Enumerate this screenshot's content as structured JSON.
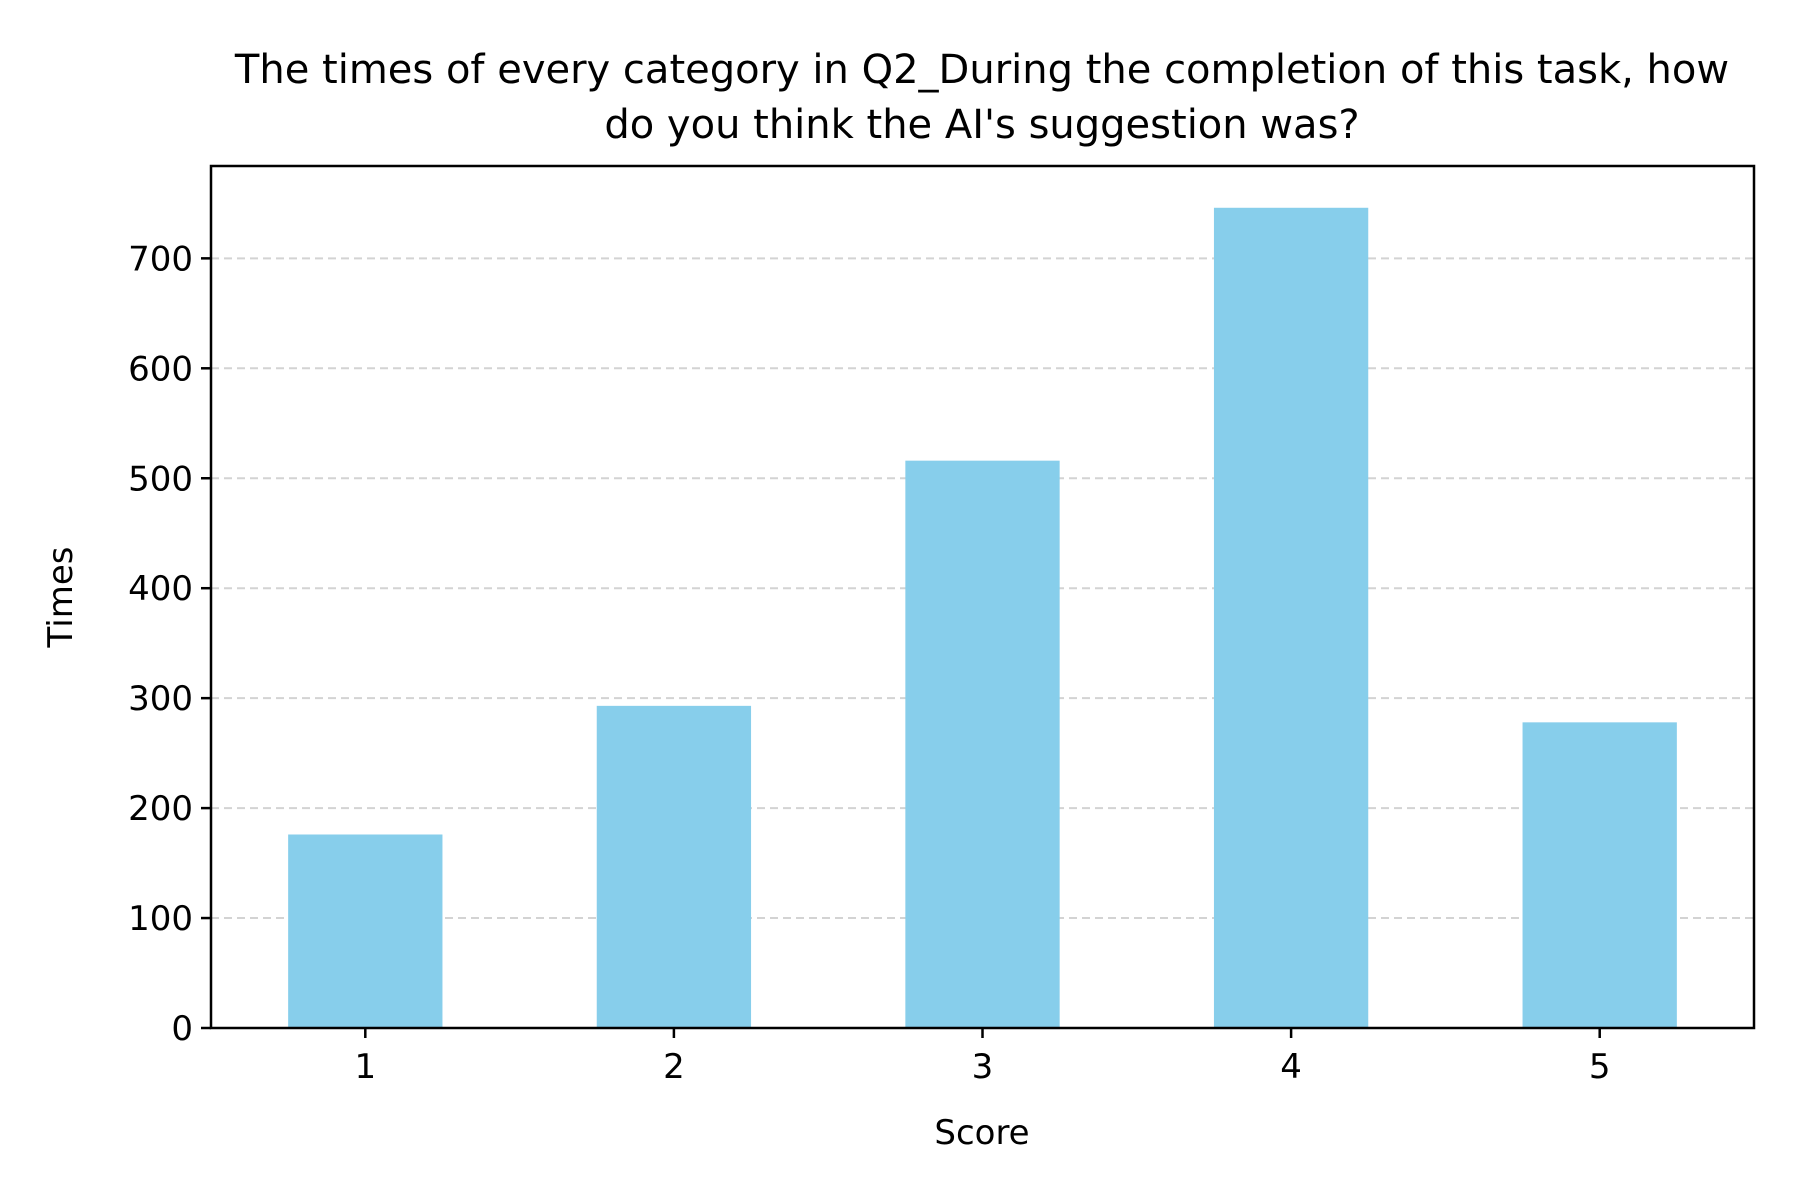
{
  "chart_data": {
    "type": "bar",
    "title_lines": [
      "The times of every category in Q2_During the completion of this task, how",
      "do you think the AI's suggestion was?"
    ],
    "xlabel": "Score",
    "ylabel": "Times",
    "categories": [
      "1",
      "2",
      "3",
      "4",
      "5"
    ],
    "values": [
      176,
      293,
      516,
      746,
      278
    ],
    "ylim": [
      0,
      784
    ],
    "yticks": [
      0,
      100,
      200,
      300,
      400,
      500,
      600,
      700
    ],
    "grid": "y-dashed",
    "colors": {
      "bar": "#87CEEB",
      "grid": "#d3d3d3",
      "axis": "#000000"
    }
  }
}
